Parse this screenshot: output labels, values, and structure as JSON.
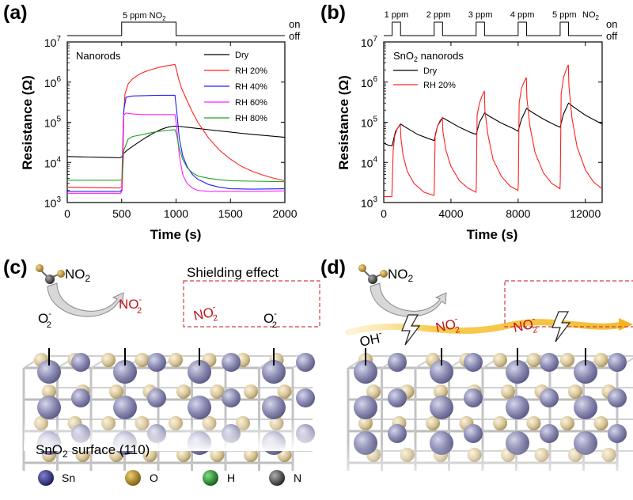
{
  "panels": {
    "a": "(a)",
    "b": "(b)",
    "c": "(c)",
    "d": "(d)"
  },
  "chart_data": [
    {
      "type": "line",
      "panel": "(a)",
      "inner_title": "Nanorods",
      "xlabel": "Time (s)",
      "ylabel": "Resistance (Ω)",
      "xlim": [
        0,
        2000
      ],
      "ylim": [
        1000,
        10000000
      ],
      "yscale": "log",
      "x_ticks": [
        "0",
        "500",
        "1000",
        "1500",
        "2000"
      ],
      "y_tick_base": "10",
      "y_tick_exps": [
        "3",
        "4",
        "5",
        "6",
        "7"
      ],
      "gas_pulse": {
        "label_text": "5 ppm NO",
        "label_sub": "2",
        "on_label": "on",
        "off_label": "off",
        "pulses": [
          [
            500,
            1000
          ]
        ]
      },
      "legend_position": "top-right",
      "series": [
        {
          "name": "Dry",
          "color": "#000000",
          "points": [
            [
              0,
              14000
            ],
            [
              100,
              13800
            ],
            [
              200,
              13600
            ],
            [
              300,
              13400
            ],
            [
              400,
              13200
            ],
            [
              480,
              13000
            ],
            [
              500,
              13500
            ],
            [
              520,
              17000
            ],
            [
              560,
              21000
            ],
            [
              600,
              25000
            ],
            [
              650,
              31000
            ],
            [
              700,
              38000
            ],
            [
              750,
              46000
            ],
            [
              800,
              55000
            ],
            [
              850,
              64000
            ],
            [
              900,
              72000
            ],
            [
              950,
              78000
            ],
            [
              1000,
              80000
            ],
            [
              1050,
              78000
            ],
            [
              1100,
              75000
            ],
            [
              1200,
              70000
            ],
            [
              1300,
              65000
            ],
            [
              1400,
              61000
            ],
            [
              1500,
              57000
            ],
            [
              1600,
              53000
            ],
            [
              1700,
              50000
            ],
            [
              1800,
              47000
            ],
            [
              1900,
              44500
            ],
            [
              2000,
              42000
            ]
          ]
        },
        {
          "name": "RH 20%",
          "color": "#ff2020",
          "points": [
            [
              0,
              2400
            ],
            [
              250,
              2350
            ],
            [
              480,
              2300
            ],
            [
              500,
              2400
            ],
            [
              515,
              100000
            ],
            [
              530,
              500000
            ],
            [
              560,
              900000
            ],
            [
              600,
              1200000
            ],
            [
              650,
              1500000
            ],
            [
              700,
              1750000
            ],
            [
              750,
              1950000
            ],
            [
              800,
              2150000
            ],
            [
              850,
              2350000
            ],
            [
              900,
              2500000
            ],
            [
              950,
              2650000
            ],
            [
              990,
              2750000
            ],
            [
              1005,
              2000000
            ],
            [
              1020,
              1300000
            ],
            [
              1050,
              700000
            ],
            [
              1100,
              350000
            ],
            [
              1150,
              180000
            ],
            [
              1200,
              100000
            ],
            [
              1300,
              40000
            ],
            [
              1400,
              20000
            ],
            [
              1500,
              12000
            ],
            [
              1600,
              8000
            ],
            [
              1700,
              6000
            ],
            [
              1800,
              4800
            ],
            [
              1900,
              4000
            ],
            [
              2000,
              3500
            ]
          ]
        },
        {
          "name": "RH 40%",
          "color": "#2020ff",
          "points": [
            [
              0,
              1900
            ],
            [
              250,
              1900
            ],
            [
              490,
              1900
            ],
            [
              505,
              2200
            ],
            [
              520,
              200000
            ],
            [
              540,
              420000
            ],
            [
              600,
              450000
            ],
            [
              700,
              460000
            ],
            [
              800,
              465000
            ],
            [
              900,
              470000
            ],
            [
              990,
              470000
            ],
            [
              1005,
              200000
            ],
            [
              1030,
              40000
            ],
            [
              1060,
              15000
            ],
            [
              1100,
              8000
            ],
            [
              1150,
              5000
            ],
            [
              1200,
              3800
            ],
            [
              1300,
              2800
            ],
            [
              1400,
              2400
            ],
            [
              1500,
              2200
            ],
            [
              1700,
              2150
            ],
            [
              2000,
              2200
            ]
          ]
        },
        {
          "name": "RH 60%",
          "color": "#ff20ff",
          "points": [
            [
              0,
              1700
            ],
            [
              250,
              1700
            ],
            [
              490,
              1700
            ],
            [
              505,
              2000
            ],
            [
              520,
              150000
            ],
            [
              540,
              170000
            ],
            [
              600,
              160000
            ],
            [
              700,
              155000
            ],
            [
              800,
              155000
            ],
            [
              900,
              155000
            ],
            [
              990,
              155000
            ],
            [
              1005,
              80000
            ],
            [
              1030,
              15000
            ],
            [
              1060,
              5000
            ],
            [
              1100,
              3000
            ],
            [
              1150,
              2300
            ],
            [
              1200,
              2000
            ],
            [
              1300,
              1900
            ],
            [
              1500,
              1900
            ],
            [
              1700,
              1900
            ],
            [
              2000,
              1950
            ]
          ]
        },
        {
          "name": "RH 80%",
          "color": "#20a020",
          "points": [
            [
              0,
              3600
            ],
            [
              250,
              3600
            ],
            [
              490,
              3600
            ],
            [
              505,
              3700
            ],
            [
              520,
              20000
            ],
            [
              560,
              38000
            ],
            [
              600,
              44000
            ],
            [
              700,
              50000
            ],
            [
              800,
              57000
            ],
            [
              900,
              62000
            ],
            [
              990,
              65000
            ],
            [
              1005,
              50000
            ],
            [
              1030,
              22000
            ],
            [
              1060,
              12000
            ],
            [
              1100,
              7500
            ],
            [
              1150,
              5500
            ],
            [
              1200,
              4600
            ],
            [
              1300,
              4000
            ],
            [
              1400,
              3700
            ],
            [
              1500,
              3500
            ],
            [
              1700,
              3400
            ],
            [
              2000,
              3300
            ]
          ]
        }
      ]
    },
    {
      "type": "line",
      "panel": "(b)",
      "inner_title_text": "SnO",
      "inner_title_sub": "2",
      "inner_title_rest": " nanorods",
      "xlabel": "Time (s)",
      "ylabel": "Resistance (Ω)",
      "xlim": [
        0,
        13000
      ],
      "ylim": [
        1000,
        10000000
      ],
      "yscale": "log",
      "x_ticks": [
        "0",
        "4000",
        "8000",
        "12000"
      ],
      "y_tick_base": "10",
      "y_tick_exps": [
        "3",
        "4",
        "5",
        "6",
        "7"
      ],
      "gas_pulse": {
        "labels": [
          "1 ppm",
          "2 ppm",
          "3 ppm",
          "4 ppm",
          "5 ppm"
        ],
        "gas_label": "NO",
        "gas_sub": "2",
        "on_label": "on",
        "off_label": "off",
        "pulses": [
          [
            500,
            1000
          ],
          [
            3000,
            3500
          ],
          [
            5500,
            6000
          ],
          [
            8000,
            8500
          ],
          [
            10500,
            11000
          ]
        ]
      },
      "legend_position": "top-left",
      "series": [
        {
          "name": "Dry",
          "color": "#000000",
          "points": [
            [
              0,
              30000
            ],
            [
              250,
              27000
            ],
            [
              500,
              26000
            ],
            [
              700,
              60000
            ],
            [
              1000,
              90000
            ],
            [
              1300,
              75000
            ],
            [
              2000,
              50000
            ],
            [
              2600,
              40000
            ],
            [
              3000,
              35000
            ],
            [
              3200,
              80000
            ],
            [
              3500,
              130000
            ],
            [
              3800,
              110000
            ],
            [
              4500,
              75000
            ],
            [
              5200,
              55000
            ],
            [
              5500,
              50000
            ],
            [
              5700,
              100000
            ],
            [
              6000,
              170000
            ],
            [
              6300,
              140000
            ],
            [
              7000,
              95000
            ],
            [
              7700,
              70000
            ],
            [
              8000,
              60000
            ],
            [
              8200,
              120000
            ],
            [
              8500,
              220000
            ],
            [
              8800,
              180000
            ],
            [
              9500,
              120000
            ],
            [
              10200,
              85000
            ],
            [
              10500,
              75000
            ],
            [
              10700,
              160000
            ],
            [
              11000,
              300000
            ],
            [
              11300,
              240000
            ],
            [
              12000,
              150000
            ],
            [
              12600,
              110000
            ],
            [
              13000,
              90000
            ]
          ]
        },
        {
          "name": "RH 20%",
          "color": "#ff2020",
          "points": [
            [
              0,
              1400
            ],
            [
              480,
              1400
            ],
            [
              510,
              3000
            ],
            [
              560,
              20000
            ],
            [
              650,
              45000
            ],
            [
              800,
              70000
            ],
            [
              990,
              85000
            ],
            [
              1020,
              40000
            ],
            [
              1150,
              15000
            ],
            [
              1400,
              6000
            ],
            [
              1800,
              3000
            ],
            [
              2400,
              1800
            ],
            [
              2990,
              1500
            ],
            [
              3010,
              2500
            ],
            [
              3060,
              50000
            ],
            [
              3200,
              80000
            ],
            [
              3350,
              110000
            ],
            [
              3490,
              130000
            ],
            [
              3520,
              60000
            ],
            [
              3700,
              20000
            ],
            [
              4000,
              8000
            ],
            [
              4500,
              3500
            ],
            [
              5000,
              2300
            ],
            [
              5490,
              1800
            ],
            [
              5510,
              3000
            ],
            [
              5560,
              150000
            ],
            [
              5700,
              300000
            ],
            [
              5850,
              450000
            ],
            [
              5990,
              600000
            ],
            [
              6020,
              200000
            ],
            [
              6200,
              50000
            ],
            [
              6500,
              12000
            ],
            [
              7000,
              4500
            ],
            [
              7500,
              2600
            ],
            [
              7990,
              2000
            ],
            [
              8010,
              3000
            ],
            [
              8060,
              300000
            ],
            [
              8200,
              700000
            ],
            [
              8350,
              1000000
            ],
            [
              8490,
              1300000
            ],
            [
              8520,
              400000
            ],
            [
              8700,
              80000
            ],
            [
              9000,
              18000
            ],
            [
              9500,
              5500
            ],
            [
              10000,
              3000
            ],
            [
              10490,
              2200
            ],
            [
              10510,
              3500
            ],
            [
              10560,
              500000
            ],
            [
              10700,
              1300000
            ],
            [
              10850,
              2000000
            ],
            [
              10990,
              2700000
            ],
            [
              11020,
              800000
            ],
            [
              11200,
              130000
            ],
            [
              11500,
              25000
            ],
            [
              12000,
              6500
            ],
            [
              12500,
              3200
            ],
            [
              13000,
              2200
            ]
          ]
        }
      ]
    }
  ],
  "scheme_c": {
    "molecule_label": "NO",
    "molecule_sub": "2",
    "shielding_label": "Shielding effect",
    "ions": [
      {
        "text": "O",
        "sub": "2",
        "sup": "-"
      },
      {
        "text": "NO",
        "sub": "2",
        "sup": "-"
      },
      {
        "text": "NO",
        "sub": "2",
        "sup": "-"
      },
      {
        "text": "O",
        "sub": "2",
        "sup": "-"
      }
    ],
    "surface_label": "SnO",
    "surface_sub": "2",
    "surface_rest": " surface (110)",
    "legend": [
      {
        "name": "Sn",
        "color": "#2a2a78"
      },
      {
        "name": "O",
        "color": "#b8901e"
      },
      {
        "name": "H",
        "color": "#1f8a2e"
      },
      {
        "name": "N",
        "color": "#444444"
      }
    ]
  },
  "scheme_d": {
    "molecule_label": "NO",
    "molecule_sub": "2",
    "ions": [
      {
        "text": "OH",
        "sub": "",
        "sup": "-"
      },
      {
        "text": "NO",
        "sub": "2",
        "sup": "-"
      },
      {
        "text": "NO",
        "sub": "2",
        "sup": "-"
      }
    ]
  },
  "colors": {
    "sn_atom": "#8e8eb4",
    "o_atom": "#d8c8a0",
    "shield_box": "#d04040",
    "ion_red": "#c0141c",
    "electron_arrow": "#f7c640"
  }
}
